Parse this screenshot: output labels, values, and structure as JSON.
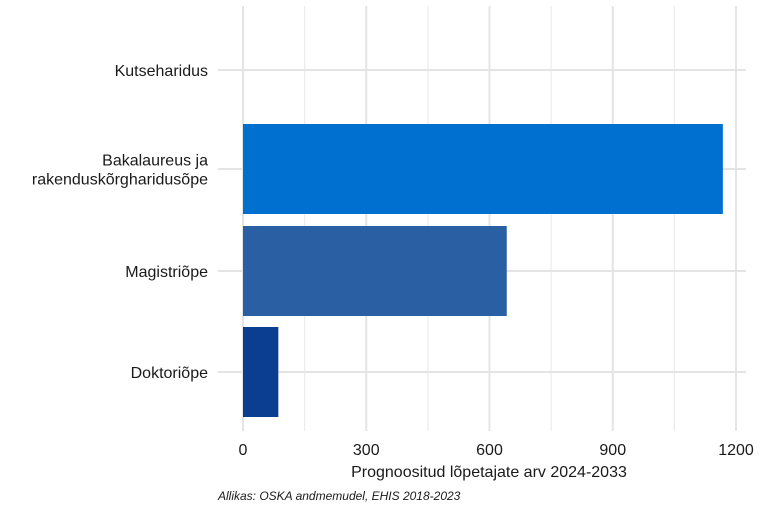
{
  "chart_data": {
    "type": "bar",
    "orientation": "horizontal",
    "categories": [
      "Kutseharidus",
      "Bakalaureus ja rakenduskõrgharidusõpe",
      "Magistriõpe",
      "Doktoriõpe"
    ],
    "category_lines": [
      [
        "Kutseharidus"
      ],
      [
        "Bakalaureus ja",
        "rakenduskõrgharidusõpe"
      ],
      [
        "Magistriõpe"
      ],
      [
        "Doktoriõpe"
      ]
    ],
    "values": [
      0,
      1168,
      642,
      86
    ],
    "colors": [
      "#0070d0",
      "#0070d0",
      "#2b5fa3",
      "#0b3d91"
    ],
    "xlabel": "Prognoositud lõpetajate arv 2024-2033",
    "ylabel": "",
    "xlim": [
      0,
      1230
    ],
    "xticks": [
      0,
      300,
      600,
      900,
      1200
    ],
    "grid": true,
    "caption": "Allikas: OSKA andmemudel, EHIS 2018-2023"
  }
}
